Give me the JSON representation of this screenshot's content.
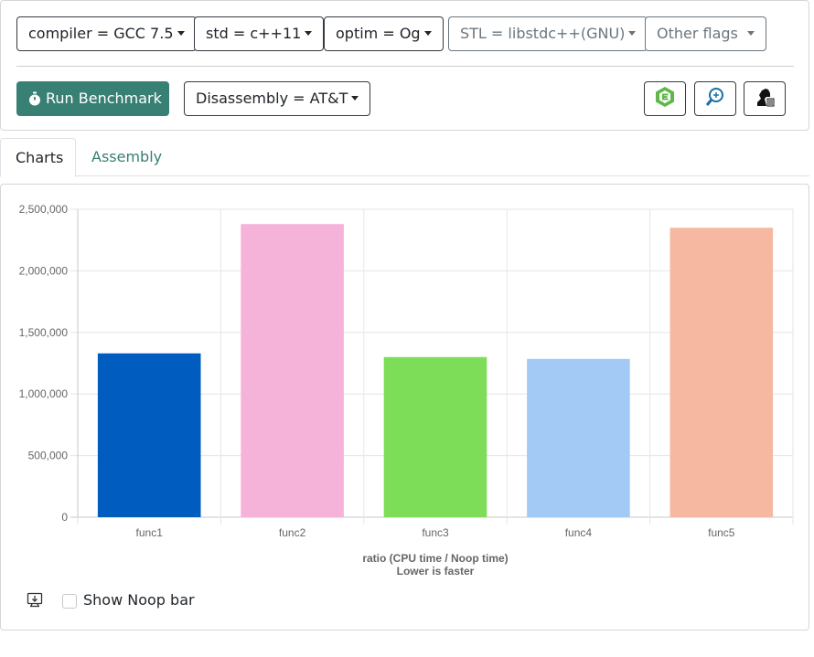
{
  "toolbar": {
    "compiler": "compiler = GCC 7.5",
    "std": "std = c++11",
    "optim": "optim = Og",
    "stl": "STL = libstdc++(GNU)",
    "other_flags": "Other flags",
    "run_label": "Run Benchmark",
    "disassembly": "Disassembly = AT&T",
    "icons": [
      "quick-c++-icon",
      "zoom-in-icon",
      "chess-knight-icon"
    ],
    "accent_color": "#387f74"
  },
  "tabs": [
    {
      "label": "Charts",
      "active": true
    },
    {
      "label": "Assembly",
      "active": false
    }
  ],
  "chart_data": {
    "type": "bar",
    "categories": [
      "func1",
      "func2",
      "func3",
      "func4",
      "func5"
    ],
    "values": [
      1330000,
      2380000,
      1300000,
      1285000,
      2350000
    ],
    "colors": [
      "#005cbf",
      "#f5b3da",
      "#7ddc58",
      "#a3caf4",
      "#f6b8a0"
    ],
    "yticks": [
      "0",
      "500,000",
      "1,000,000",
      "1,500,000",
      "2,000,000",
      "2,500,000"
    ],
    "ylim": [
      0,
      2500000
    ],
    "xlabel_line1": "ratio (CPU time / Noop time)",
    "xlabel_line2": "Lower is faster",
    "grid": true
  },
  "footer": {
    "checkbox_label": "Show Noop bar",
    "checkbox_checked": false,
    "download_icon": "download-chart-icon"
  }
}
